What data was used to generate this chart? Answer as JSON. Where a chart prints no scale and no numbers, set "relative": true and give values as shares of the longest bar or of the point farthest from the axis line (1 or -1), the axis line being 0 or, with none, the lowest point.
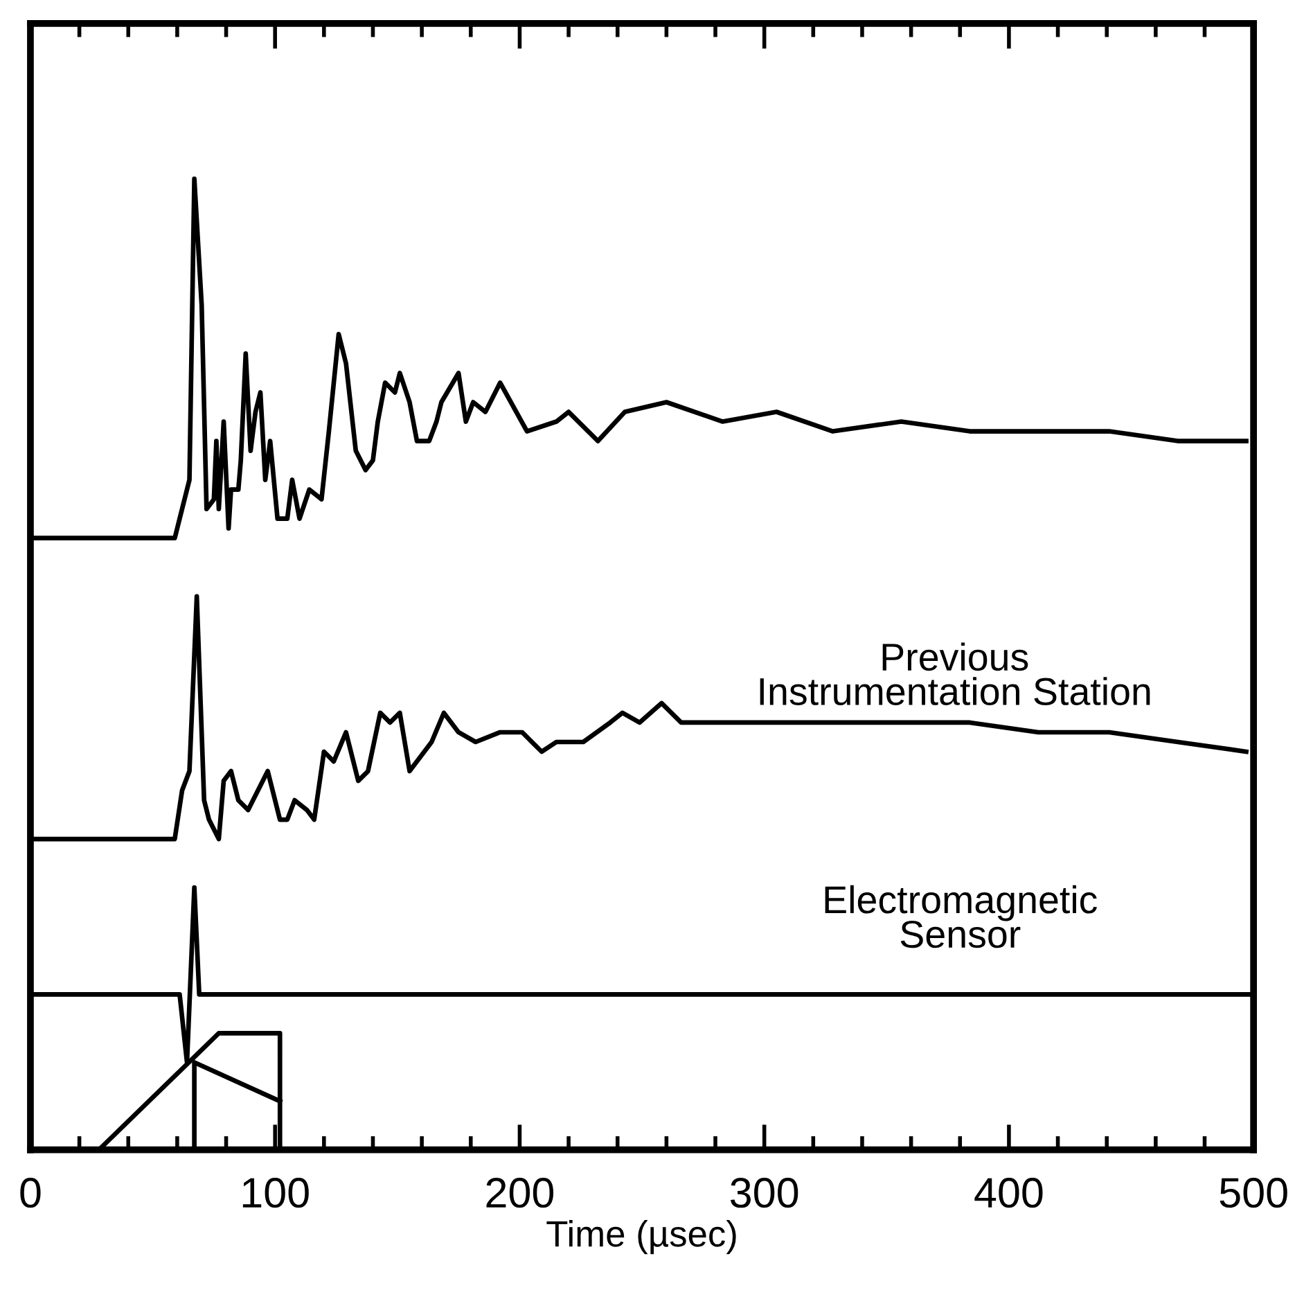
{
  "chart_data": {
    "type": "line",
    "relative": true,
    "xlabel": "Time (µsec)",
    "xlim": [
      0,
      500
    ],
    "xticks": [
      0,
      {
        "value": 20,
        "label": null
      },
      {
        "value": 40,
        "label": null
      },
      {
        "value": 60,
        "label": null
      },
      {
        "value": 80,
        "label": null
      },
      100,
      {
        "value": 120,
        "label": null
      },
      {
        "value": 140,
        "label": null
      },
      {
        "value": 160,
        "label": null
      },
      {
        "value": 180,
        "label": null
      },
      200,
      {
        "value": 220,
        "label": null
      },
      {
        "value": 240,
        "label": null
      },
      {
        "value": 260,
        "label": null
      },
      {
        "value": 280,
        "label": null
      },
      300,
      {
        "value": 320,
        "label": null
      },
      {
        "value": 340,
        "label": null
      },
      {
        "value": 360,
        "label": null
      },
      {
        "value": 380,
        "label": null
      },
      400,
      {
        "value": 420,
        "label": null
      },
      {
        "value": 440,
        "label": null
      },
      {
        "value": 460,
        "label": null
      },
      {
        "value": 480,
        "label": null
      },
      500
    ],
    "grid": false,
    "legend": false,
    "marker": "none",
    "line_style": "solid",
    "series": [
      {
        "color": "#000000",
        "x": [
          0,
          59,
          62,
          65,
          67,
          70,
          72,
          75,
          76,
          77,
          79,
          81,
          82,
          85,
          86,
          88,
          90,
          92,
          94,
          96,
          98,
          101,
          105,
          107,
          110,
          114,
          119,
          122,
          126,
          129,
          133,
          137,
          140,
          142,
          145,
          149,
          151,
          155,
          158,
          163,
          166,
          168,
          175,
          178,
          181,
          186,
          192,
          203,
          215,
          220,
          232,
          243,
          260,
          283,
          305,
          328,
          356,
          384,
          412,
          441,
          469,
          497
        ],
        "values": [
          0.63,
          0.63,
          0.66,
          0.69,
          1,
          0.87,
          0.66,
          0.67,
          0.73,
          0.66,
          0.75,
          0.64,
          0.68,
          0.68,
          0.71,
          0.82,
          0.72,
          0.76,
          0.78,
          0.69,
          0.73,
          0.65,
          0.65,
          0.69,
          0.65,
          0.68,
          0.67,
          0.74,
          0.84,
          0.81,
          0.72,
          0.7,
          0.71,
          0.75,
          0.79,
          0.78,
          0.8,
          0.77,
          0.73,
          0.73,
          0.75,
          0.77,
          0.8,
          0.75,
          0.77,
          0.76,
          0.79,
          0.74,
          0.75,
          0.76,
          0.73,
          0.76,
          0.77,
          0.75,
          0.76,
          0.74,
          0.75,
          0.74,
          0.74,
          0.74,
          0.73,
          0.73
        ]
      },
      {
        "name": "Previous\nInstrumentation Station",
        "color": "#000000",
        "x": [
          0,
          59,
          62,
          65,
          68,
          71,
          73,
          77,
          79,
          82,
          85,
          89,
          93,
          97,
          102,
          105,
          108,
          113,
          116,
          120,
          124,
          129,
          134,
          138,
          143,
          147,
          151,
          155,
          158,
          164,
          169,
          175,
          182,
          192,
          201,
          209,
          215,
          226,
          237,
          242,
          249,
          258,
          266,
          282,
          305,
          328,
          356,
          384,
          412,
          441,
          469,
          497
        ],
        "values": [
          0.32,
          0.32,
          0.37,
          0.39,
          0.57,
          0.36,
          0.34,
          0.32,
          0.38,
          0.39,
          0.36,
          0.35,
          0.37,
          0.39,
          0.34,
          0.34,
          0.36,
          0.35,
          0.34,
          0.41,
          0.4,
          0.43,
          0.38,
          0.39,
          0.45,
          0.44,
          0.45,
          0.39,
          0.4,
          0.42,
          0.45,
          0.43,
          0.42,
          0.43,
          0.43,
          0.41,
          0.42,
          0.42,
          0.44,
          0.45,
          0.44,
          0.46,
          0.44,
          0.44,
          0.44,
          0.44,
          0.44,
          0.44,
          0.43,
          0.43,
          0.42,
          0.41
        ]
      },
      {
        "name": "Electromagnetic\nSensor",
        "color": "#000000",
        "x": [
          0,
          61,
          64,
          67,
          69,
          500
        ],
        "values": [
          0.16,
          0.16,
          0.09,
          0.27,
          0.16,
          0.16
        ]
      },
      {
        "color": "#000000",
        "x": [
          28,
          77,
          102,
          102
        ],
        "values": [
          0,
          0.12,
          0.12,
          0
        ]
      },
      {
        "color": "#000000",
        "x": [
          67,
          67,
          102
        ],
        "values": [
          0,
          0.09,
          0.05
        ]
      }
    ]
  }
}
